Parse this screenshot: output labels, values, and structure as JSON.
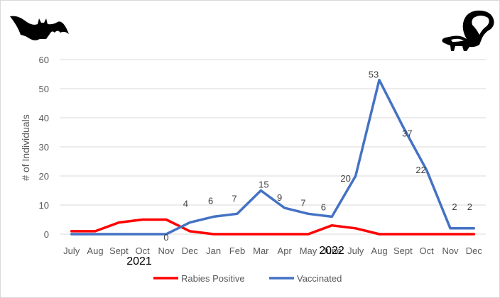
{
  "chart_data": {
    "type": "line",
    "categories": [
      "July",
      "Aug",
      "Sept",
      "Oct",
      "Nov",
      "Dec",
      "Jan",
      "Feb",
      "Mar",
      "Apr",
      "May",
      "June",
      "July",
      "Aug",
      "Sept",
      "Oct",
      "Nov",
      "Dec"
    ],
    "year_labels": [
      "2021",
      "2022"
    ],
    "ylabel": "# of Individuals",
    "ylim": [
      0,
      60
    ],
    "yticks": [
      0,
      10,
      20,
      30,
      40,
      50,
      60
    ],
    "grid": true,
    "legend_position": "bottom",
    "series": [
      {
        "name": "Rabies Positive",
        "color": "#ff0000",
        "values": [
          1,
          1,
          4,
          5,
          5,
          1,
          0,
          0,
          0,
          0,
          0,
          3,
          2,
          0,
          0,
          0,
          0,
          0
        ]
      },
      {
        "name": "Vaccinated",
        "color": "#4472c4",
        "values": [
          0,
          0,
          0,
          0,
          0,
          4,
          6,
          7,
          15,
          9,
          7,
          6,
          20,
          53,
          37,
          22,
          2,
          2
        ],
        "data_labels": [
          "",
          "",
          "",
          "",
          "0",
          "4",
          "6",
          "7",
          "15",
          "9",
          "7",
          "6",
          "20",
          "53",
          "37",
          "22",
          "2",
          "2"
        ]
      }
    ],
    "icons": [
      "bat-silhouette-icon",
      "skunk-silhouette-icon"
    ]
  }
}
